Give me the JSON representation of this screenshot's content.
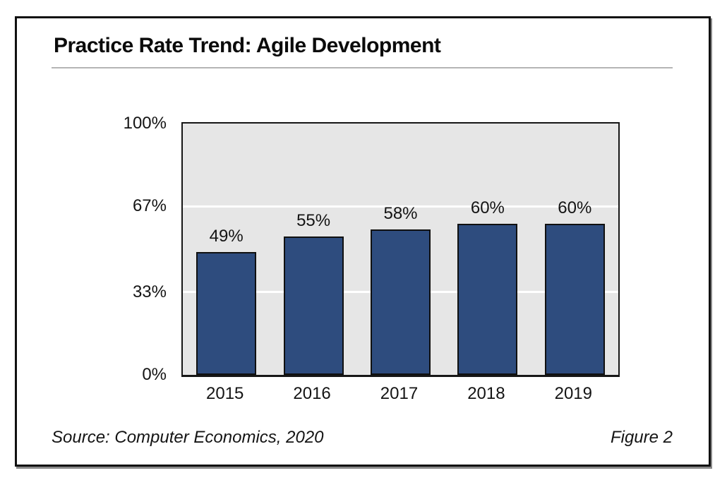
{
  "title": "Practice Rate Trend: Agile Development",
  "footer": {
    "source": "Source: Computer Economics, 2020",
    "figure": "Figure 2"
  },
  "chart_data": {
    "type": "bar",
    "title": "Practice Rate Trend: Agile Development",
    "categories": [
      "2015",
      "2016",
      "2017",
      "2018",
      "2019"
    ],
    "values": [
      49,
      55,
      58,
      60,
      60
    ],
    "value_labels": [
      "49%",
      "55%",
      "58%",
      "60%",
      "60%"
    ],
    "xlabel": "",
    "ylabel": "",
    "ylim": [
      0,
      100
    ],
    "y_ticks": [
      0,
      33,
      67,
      100
    ],
    "y_tick_labels": [
      "0%",
      "33%",
      "67%",
      "100%"
    ],
    "gridlines_at": [
      33,
      67
    ],
    "legend_position": "none",
    "colors": {
      "bar_fill": "#2e4c7e",
      "bar_border": "#101010",
      "plot_background": "#e6e6e6",
      "gridline": "#ffffff",
      "frame_border": "#111111",
      "text": "#141414",
      "title_rule": "#b5b5b5"
    }
  }
}
